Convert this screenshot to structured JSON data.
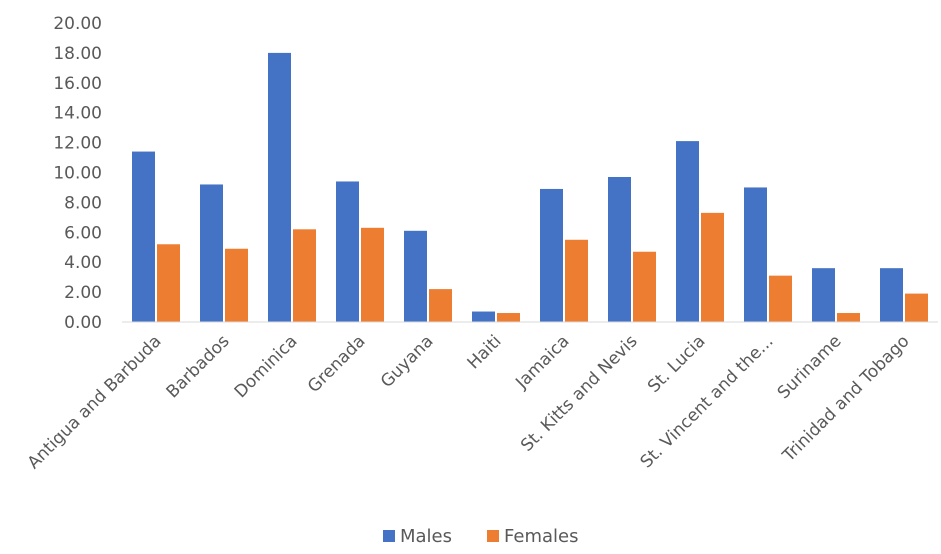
{
  "chart_data": {
    "type": "bar",
    "categories": [
      "Antigua and Barbuda",
      "Barbados",
      "Dominica",
      "Grenada",
      "Guyana",
      "Haiti",
      "Jamaica",
      "St. Kitts and Nevis",
      "St. Lucia",
      "St. Vincent and the...",
      "Suriname",
      "Trinidad and Tobago"
    ],
    "series": [
      {
        "name": "Males",
        "color": "#4472C4",
        "values": [
          11.4,
          9.2,
          18.0,
          9.4,
          6.1,
          0.7,
          8.9,
          9.7,
          12.1,
          9.0,
          3.6,
          3.6
        ]
      },
      {
        "name": "Females",
        "color": "#ED7D31",
        "values": [
          5.2,
          4.9,
          6.2,
          6.3,
          2.2,
          0.6,
          5.5,
          4.7,
          7.3,
          3.1,
          0.6,
          1.9
        ]
      }
    ],
    "ylim": [
      0,
      20
    ],
    "yticks": [
      "0.00",
      "2.00",
      "4.00",
      "6.00",
      "8.00",
      "10.00",
      "12.00",
      "14.00",
      "16.00",
      "18.00",
      "20.00"
    ],
    "title": "",
    "xlabel": "",
    "ylabel": "",
    "grid": false,
    "legend_position": "bottom"
  }
}
